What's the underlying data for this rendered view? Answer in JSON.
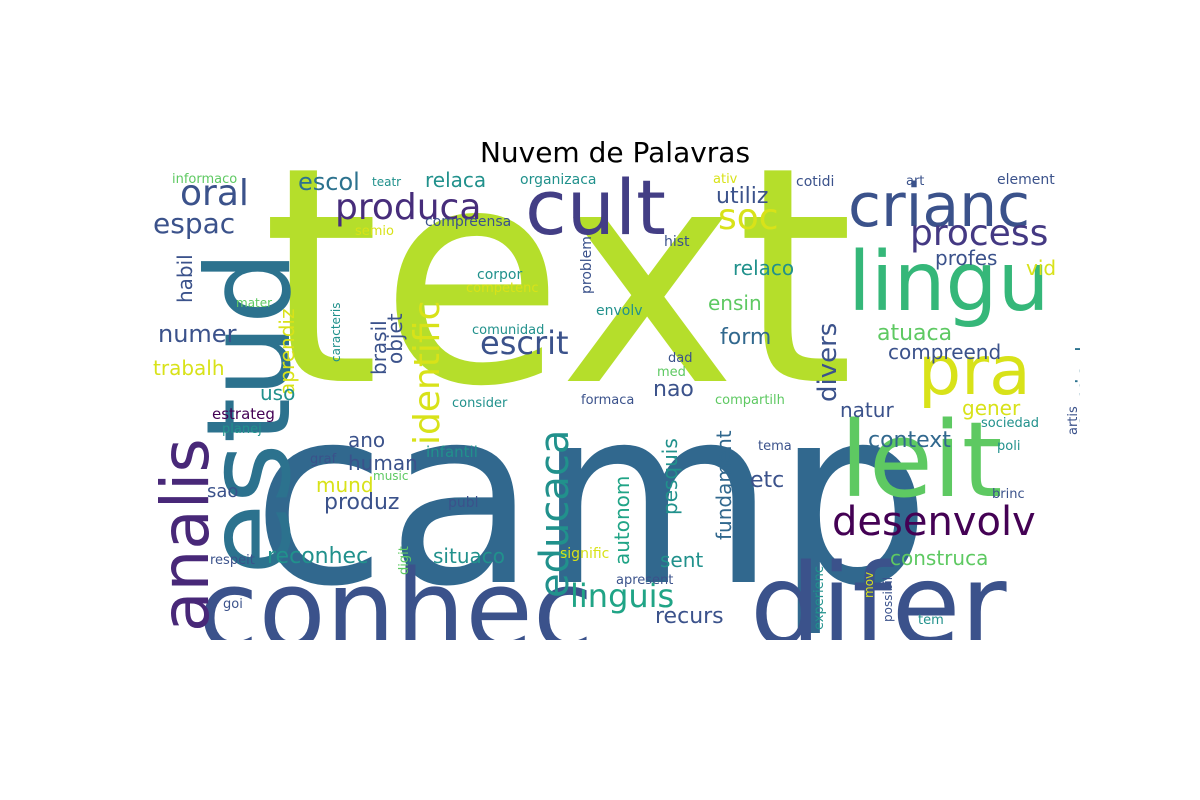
{
  "title": "Nuvem de Palavras",
  "words": [
    {
      "text": "text",
      "color": "#b5de2b"
    },
    {
      "text": "camp",
      "color": "#31688e"
    },
    {
      "text": "conhec",
      "color": "#3b528b"
    },
    {
      "text": "difer",
      "color": "#3b528b"
    },
    {
      "text": "estud",
      "color": "#2c728e"
    },
    {
      "text": "leit",
      "color": "#5ec962"
    },
    {
      "text": "lingu",
      "color": "#35b779"
    },
    {
      "text": "cult",
      "color": "#433e85"
    },
    {
      "text": "crianc",
      "color": "#3b528b"
    },
    {
      "text": "pra",
      "color": "#d8e219"
    },
    {
      "text": "analis",
      "color": "#482878"
    },
    {
      "text": "educaca",
      "color": "#21918c"
    },
    {
      "text": "identific",
      "color": "#d8e219"
    },
    {
      "text": "desenvolv",
      "color": "#440154"
    },
    {
      "text": "produca",
      "color": "#472d7b"
    },
    {
      "text": "oral",
      "color": "#3b528b"
    },
    {
      "text": "process",
      "color": "#443983"
    },
    {
      "text": "soc",
      "color": "#d8e219"
    },
    {
      "text": "linguis",
      "color": "#20a486"
    },
    {
      "text": "escrit",
      "color": "#3b528b"
    },
    {
      "text": "espac",
      "color": "#3b528b"
    },
    {
      "text": "divers",
      "color": "#3b528b"
    },
    {
      "text": "escol",
      "color": "#2c728e"
    },
    {
      "text": "relaca",
      "color": "#21918c"
    },
    {
      "text": "utiliz",
      "color": "#3b528b"
    },
    {
      "text": "numer",
      "color": "#3b528b"
    },
    {
      "text": "habil",
      "color": "#3b528b"
    },
    {
      "text": "aprendiz",
      "color": "#d8e219"
    },
    {
      "text": "brasil",
      "color": "#3b528b"
    },
    {
      "text": "objet",
      "color": "#3b528b"
    },
    {
      "text": "relaco",
      "color": "#21918c"
    },
    {
      "text": "profes",
      "color": "#3b528b"
    },
    {
      "text": "vid",
      "color": "#d8e219"
    },
    {
      "text": "ensin",
      "color": "#5ec962"
    },
    {
      "text": "form",
      "color": "#31688e"
    },
    {
      "text": "atuaca",
      "color": "#5ec962"
    },
    {
      "text": "compreend",
      "color": "#3b528b"
    },
    {
      "text": "curricul",
      "color": "#2c728e"
    },
    {
      "text": "trabalh",
      "color": "#d8e219"
    },
    {
      "text": "uso",
      "color": "#21918c"
    },
    {
      "text": "nao",
      "color": "#3b528b"
    },
    {
      "text": "natur",
      "color": "#3b528b"
    },
    {
      "text": "gener",
      "color": "#d8e219"
    },
    {
      "text": "context",
      "color": "#31688e"
    },
    {
      "text": "ano",
      "color": "#3b528b"
    },
    {
      "text": "human",
      "color": "#3b528b"
    },
    {
      "text": "mund",
      "color": "#d8e219"
    },
    {
      "text": "sao",
      "color": "#3b528b"
    },
    {
      "text": "produz",
      "color": "#3b528b"
    },
    {
      "text": "pesquis",
      "color": "#21918c"
    },
    {
      "text": "fundament",
      "color": "#31688e"
    },
    {
      "text": "autonom",
      "color": "#20a486"
    },
    {
      "text": "etc",
      "color": "#3b528b"
    },
    {
      "text": "reconhec",
      "color": "#21918c"
    },
    {
      "text": "situaco",
      "color": "#21918c"
    },
    {
      "text": "sent",
      "color": "#21918c"
    },
    {
      "text": "construca",
      "color": "#5ec962"
    },
    {
      "text": "recurs",
      "color": "#3b528b"
    },
    {
      "text": "informaco",
      "color": "#5ec962"
    },
    {
      "text": "teatr",
      "color": "#21918c"
    },
    {
      "text": "organizaca",
      "color": "#21918c"
    },
    {
      "text": "ativ",
      "color": "#d8e219"
    },
    {
      "text": "cotidi",
      "color": "#3b528b"
    },
    {
      "text": "art",
      "color": "#3b528b"
    },
    {
      "text": "element",
      "color": "#3b528b"
    },
    {
      "text": "semio",
      "color": "#d8e219"
    },
    {
      "text": "compreensa",
      "color": "#3b528b"
    },
    {
      "text": "problem",
      "color": "#3b528b"
    },
    {
      "text": "hist",
      "color": "#3b528b"
    },
    {
      "text": "corpor",
      "color": "#21918c"
    },
    {
      "text": "competenc",
      "color": "#d8e219"
    },
    {
      "text": "envolv",
      "color": "#21918c"
    },
    {
      "text": "mater",
      "color": "#5ec962"
    },
    {
      "text": "caracteris",
      "color": "#21918c"
    },
    {
      "text": "comunidad",
      "color": "#21918c"
    },
    {
      "text": "dad",
      "color": "#3b528b"
    },
    {
      "text": "med",
      "color": "#5ec962"
    },
    {
      "text": "estrateg",
      "color": "#440154"
    },
    {
      "text": "consider",
      "color": "#21918c"
    },
    {
      "text": "formaca",
      "color": "#3b528b"
    },
    {
      "text": "compartilh",
      "color": "#5ec962"
    },
    {
      "text": "planej",
      "color": "#21918c"
    },
    {
      "text": "sociedad",
      "color": "#21918c"
    },
    {
      "text": "artis",
      "color": "#3b528b"
    },
    {
      "text": "tema",
      "color": "#3b528b"
    },
    {
      "text": "graf",
      "color": "#3b528b"
    },
    {
      "text": "infantil",
      "color": "#21918c"
    },
    {
      "text": "poli",
      "color": "#21918c"
    },
    {
      "text": "music",
      "color": "#5ec962"
    },
    {
      "text": "publ",
      "color": "#3b528b"
    },
    {
      "text": "brinc",
      "color": "#3b528b"
    },
    {
      "text": "respeit",
      "color": "#3b528b"
    },
    {
      "text": "digit",
      "color": "#5ec962"
    },
    {
      "text": "signific",
      "color": "#d8e219"
    },
    {
      "text": "apresent",
      "color": "#3b528b"
    },
    {
      "text": "experienc",
      "color": "#21918c"
    },
    {
      "text": "mov",
      "color": "#d8e219"
    },
    {
      "text": "possibil",
      "color": "#3b528b"
    },
    {
      "text": "goi",
      "color": "#3b528b"
    },
    {
      "text": "tem",
      "color": "#21918c"
    }
  ]
}
